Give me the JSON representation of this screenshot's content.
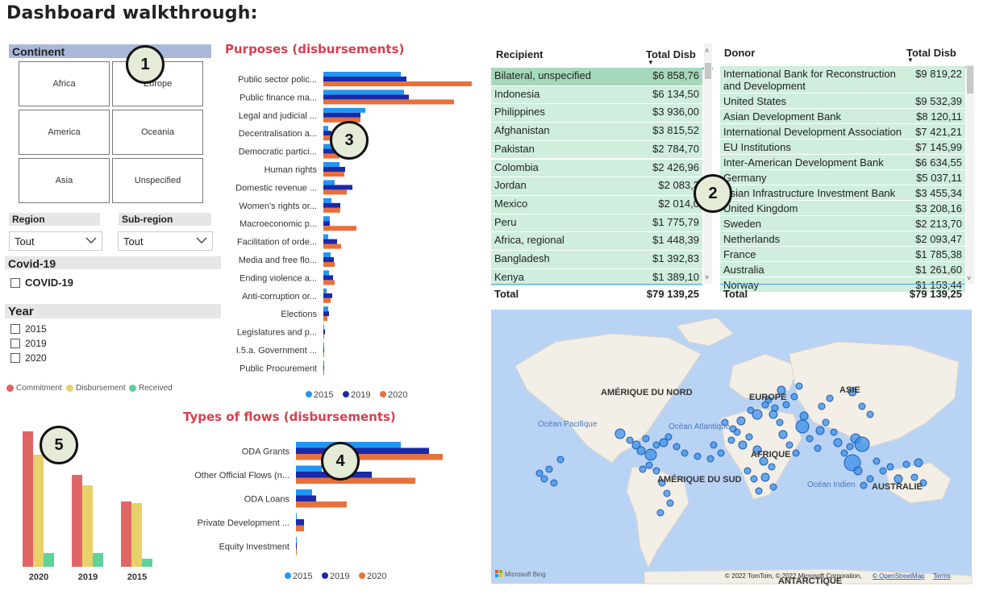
{
  "page_title": "Dashboard walkthrough:",
  "badges": {
    "b1": "1",
    "b2": "2",
    "b3": "3",
    "b4": "4",
    "b5": "5"
  },
  "continent": {
    "header": "Continent",
    "tiles": [
      "Africa",
      "Europe",
      "America",
      "Oceania",
      "Asia",
      "Unspecified"
    ]
  },
  "region": {
    "label": "Region",
    "value": "Tout"
  },
  "subregion": {
    "label": "Sub-region",
    "value": "Tout"
  },
  "covid": {
    "header": "Covid-19",
    "option": "COVID-19"
  },
  "year": {
    "header": "Year",
    "options": [
      "2015",
      "2019",
      "2020"
    ]
  },
  "legend_small": {
    "items": [
      "Commitment",
      "Disbursement",
      "Received"
    ]
  },
  "colors": {
    "y2015": "#2196f3",
    "y2019": "#1a2aa8",
    "y2020": "#e8703a",
    "commitment": "#e06666",
    "disbursement": "#e8d16a",
    "received": "#5ed39a",
    "title_red": "#d6404f",
    "table_green": "#cfeedd",
    "table_green_dark": "#a6d9bb"
  },
  "purposes_chart": {
    "title": "Purposes (disbursements)",
    "chart_data": {
      "type": "bar",
      "categories": [
        "Public sector polic...",
        "Public finance ma...",
        "Legal and judicial ...",
        "Decentralisation a...",
        "Democratic partici...",
        "Human rights",
        "Domestic revenue ...",
        "Women's rights or...",
        "Macroeconomic p...",
        "Facilitation of orde...",
        "Media and free flo...",
        "Ending violence a...",
        "Anti-corruption or...",
        "Elections",
        "Legislatures and p...",
        "I.5.a. Government ...",
        "Public Procurement"
      ],
      "series": [
        {
          "name": "2015",
          "values": [
            96,
            100,
            52,
            6,
            10,
            20,
            14,
            10,
            8,
            6,
            9,
            7,
            4,
            6,
            1,
            1,
            0.5
          ]
        },
        {
          "name": "2019",
          "values": [
            103,
            106,
            46,
            10,
            16,
            27,
            36,
            21,
            8,
            17,
            13,
            12,
            11,
            7,
            2,
            1,
            1
          ]
        },
        {
          "name": "2020",
          "values": [
            184,
            162,
            46,
            15,
            20,
            26,
            29,
            21,
            41,
            22,
            14,
            14,
            9,
            5,
            1,
            1,
            1
          ]
        }
      ],
      "legend": [
        "2015",
        "2019",
        "2020"
      ]
    }
  },
  "flows_chart": {
    "title": "Types of flows (disbursements)",
    "chart_data": {
      "type": "bar",
      "categories": [
        "ODA Grants",
        "Other Official Flows (n...",
        "ODA Loans",
        "Private Development ...",
        "Equity Investment"
      ],
      "series": [
        {
          "name": "2015",
          "values": [
            130,
            32,
            20,
            1,
            0.5
          ]
        },
        {
          "name": "2019",
          "values": [
            165,
            94,
            25,
            10,
            1
          ]
        },
        {
          "name": "2020",
          "values": [
            182,
            148,
            63,
            10,
            1
          ]
        }
      ],
      "legend": [
        "2015",
        "2019",
        "2020"
      ]
    }
  },
  "mini_chart": {
    "chart_data": {
      "type": "bar",
      "categories": [
        "2020",
        "2019",
        "2015"
      ],
      "series": [
        {
          "name": "Commitment",
          "values": [
            168,
            114,
            81
          ]
        },
        {
          "name": "Disbursement",
          "values": [
            139,
            101,
            79
          ]
        },
        {
          "name": "Received",
          "values": [
            17,
            17,
            10
          ]
        }
      ]
    }
  },
  "recipient_table": {
    "col1": "Recipient",
    "col2": "Total Disb",
    "rows": [
      [
        "Bilateral, unspecified",
        "$6 858,76"
      ],
      [
        "Indonesia",
        "$6 134,50"
      ],
      [
        "Philippines",
        "$3 936,00"
      ],
      [
        "Afghanistan",
        "$3 815,52"
      ],
      [
        "Pakistan",
        "$2 784,70"
      ],
      [
        "Colombia",
        "$2 426,96"
      ],
      [
        "Jordan",
        "$2 083,3"
      ],
      [
        "Mexico",
        "$2 014,0"
      ],
      [
        "Peru",
        "$1 775,79"
      ],
      [
        "Africa, regional",
        "$1 448,39"
      ],
      [
        "Bangladesh",
        "$1 392,83"
      ],
      [
        "Kenya",
        "$1 389,10"
      ]
    ],
    "total_label": "Total",
    "total_value": "$79 139,25"
  },
  "donor_table": {
    "col1": "Donor",
    "col2": "Total Disb",
    "rows": [
      [
        "International Bank for Reconstruction and Development",
        "$9 819,22"
      ],
      [
        "United States",
        "$9 532,39"
      ],
      [
        "Asian Development Bank",
        "$8 120,11"
      ],
      [
        "International Development Association",
        "$7 421,21"
      ],
      [
        "EU Institutions",
        "$7 145,99"
      ],
      [
        "Inter-American Development Bank",
        "$6 634,55"
      ],
      [
        "Germany",
        "$5 037,11"
      ],
      [
        "Asian Infrastructure Investment Bank",
        "$3 455,34"
      ],
      [
        "United Kingdom",
        "$3 208,16"
      ],
      [
        "Sweden",
        "$2 213,70"
      ],
      [
        "Netherlands",
        "$2 093,47"
      ],
      [
        "France",
        "$1 785,38"
      ],
      [
        "Australia",
        "$1 261,60"
      ],
      [
        "Norway",
        "$1 153,44"
      ]
    ],
    "total_label": "Total",
    "total_value": "$79 139,25"
  },
  "map": {
    "labels": {
      "na": "AMÉRIQUE DU NORD",
      "eu": "EUROPE",
      "asie": "ASIE",
      "afr": "AFRIQUE",
      "sa": "AMÉRIQUE DU SUD",
      "aus": "AUSTRALIE",
      "ant": "ANTARCTIQUE",
      "pac": "Océan Pacifique",
      "atl": "Océan Atlantique",
      "ind": "Océan Indien"
    },
    "brand": "Microsoft Bing",
    "copyright": "© 2022 TomTom, © 2022 Microsoft Corporation,",
    "osm_link": "© OpenStreetMap",
    "terms": "Terms"
  }
}
